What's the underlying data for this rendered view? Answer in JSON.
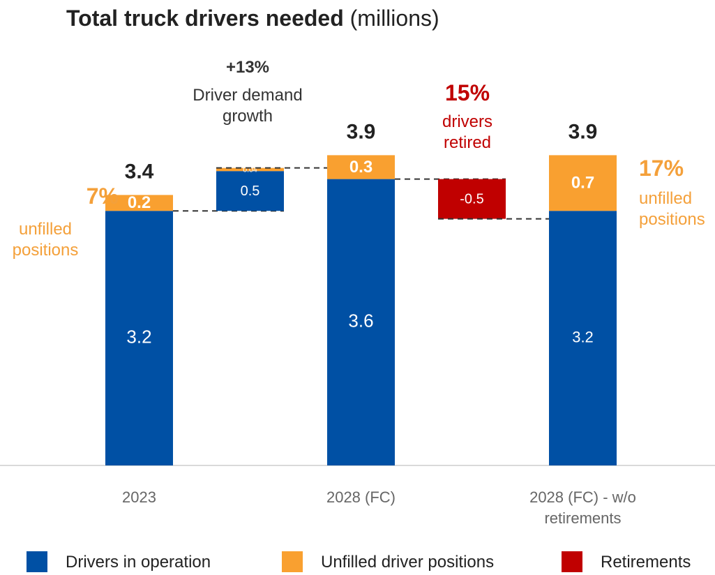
{
  "chart_data": {
    "type": "waterfall",
    "title": "Total truck drivers needed",
    "title_unit": "(millions)",
    "categories": [
      "2023",
      null,
      "2028 (FC)",
      null,
      "2028 (FC) - w/o retirements"
    ],
    "series": [
      {
        "name": "Drivers in operation",
        "color": "#0050a4",
        "values": [
          3.2,
          0.5,
          3.6,
          null,
          3.2
        ]
      },
      {
        "name": "Unfilled driver positions",
        "color": "#f9a030",
        "values": [
          0.2,
          0.04,
          0.3,
          null,
          0.7
        ]
      },
      {
        "name": "Retirements",
        "color": "#c00000",
        "values": [
          null,
          null,
          null,
          -0.5,
          null
        ]
      }
    ],
    "totals": [
      3.4,
      null,
      3.9,
      null,
      3.9
    ],
    "ylim": [
      0,
      4.5
    ],
    "annotations": [
      "+13%",
      "Driver demand growth",
      "15%",
      "drivers retired",
      "7%",
      "unfilled positions",
      "17%",
      "unfilled positions"
    ]
  }
}
